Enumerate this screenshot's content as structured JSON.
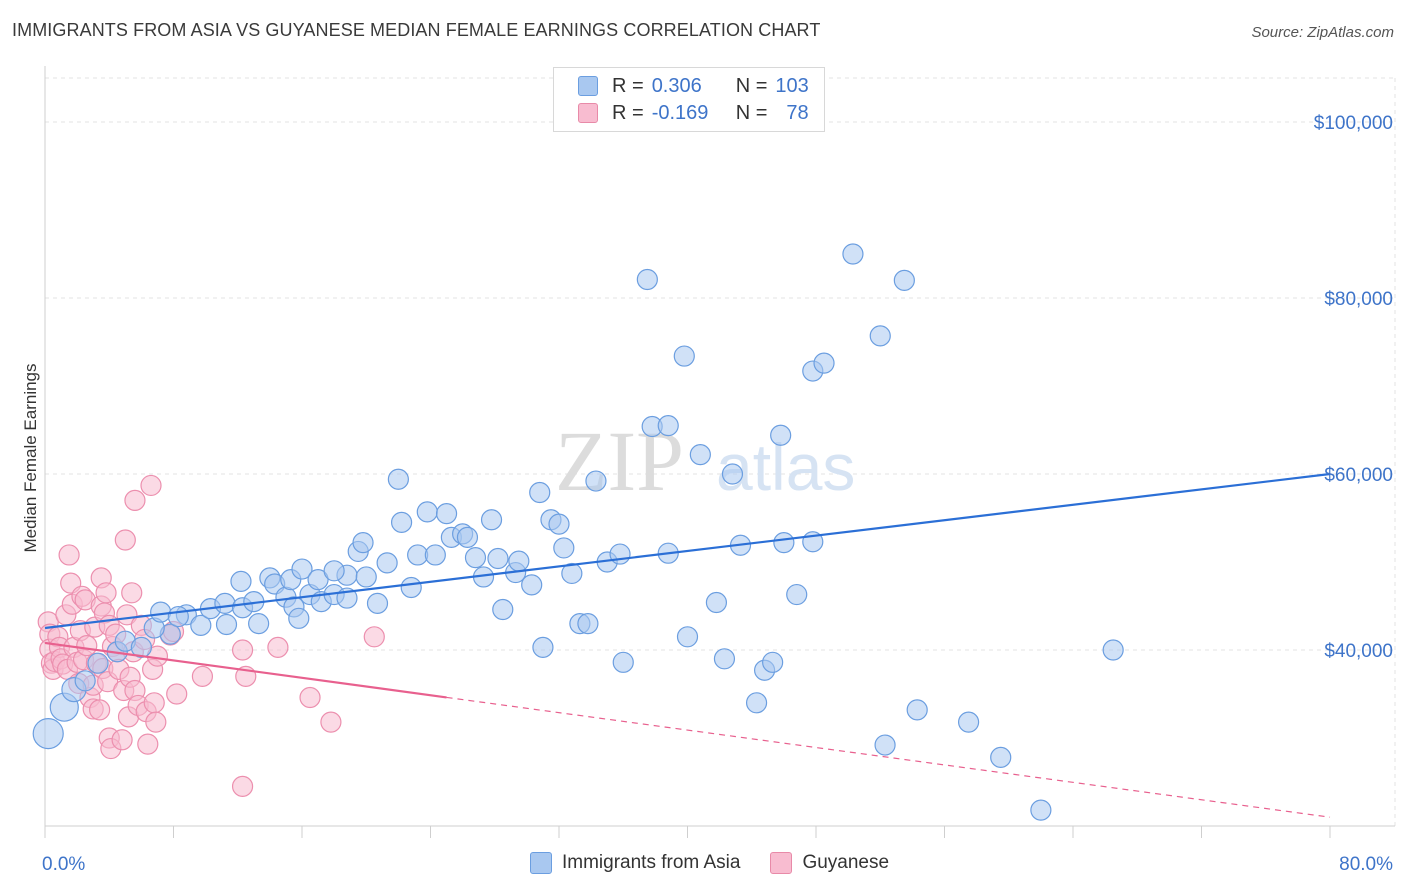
{
  "title": "IMMIGRANTS FROM ASIA VS GUYANESE MEDIAN FEMALE EARNINGS CORRELATION CHART",
  "source": "Source: ZipAtlas.com",
  "watermark": {
    "zip": "ZIP",
    "atlas": "atlas"
  },
  "legend_top": {
    "rows": [
      {
        "r_label": "R =",
        "r_value": "0.306",
        "n_label": "N =",
        "n_value": "103",
        "color": "#a9c8f0",
        "border": "#6b9ee0"
      },
      {
        "r_label": "R =",
        "r_value": "-0.169",
        "n_label": "N =",
        "n_value": "78",
        "color": "#f8bcd0",
        "border": "#e88aa8"
      }
    ]
  },
  "legend_bottom": {
    "items": [
      "Immigrants from Asia",
      "Guyanese"
    ]
  },
  "colors": {
    "blue_fill": "#a9c8f0",
    "blue_stroke": "#6b9ee0",
    "blue_line": "#2b6fd6",
    "pink_fill": "#f8bcd0",
    "pink_stroke": "#ec8fae",
    "pink_line": "#e8608e",
    "axis_text": "#3e74c9",
    "grid": "#e3e3e3"
  },
  "chart_data": {
    "type": "scatter",
    "title": "IMMIGRANTS FROM ASIA VS GUYANESE MEDIAN FEMALE EARNINGS CORRELATION CHART",
    "xlabel": "",
    "ylabel": "Median Female Earnings",
    "xlim": [
      0,
      80
    ],
    "ylim": [
      20000,
      105000
    ],
    "x_tick_labels": [
      "0.0%",
      "80.0%"
    ],
    "y_ticks": [
      40000,
      60000,
      80000,
      100000
    ],
    "y_tick_labels": [
      "$40,000",
      "$60,000",
      "$80,000",
      "$100,000"
    ],
    "grid": true,
    "series": [
      {
        "name": "Immigrants from Asia",
        "trend": {
          "x0": 0,
          "y0": 42500,
          "x1": 80,
          "y1": 60000,
          "dashed_from": null
        },
        "points": [
          [
            0.2,
            30500
          ],
          [
            1.2,
            33500
          ],
          [
            1.8,
            35500
          ],
          [
            2.5,
            36500
          ],
          [
            3.3,
            38500
          ],
          [
            4.5,
            39800
          ],
          [
            5,
            41000
          ],
          [
            6,
            40300
          ],
          [
            7.8,
            41800
          ],
          [
            6.8,
            42500
          ],
          [
            7.2,
            44300
          ],
          [
            8.8,
            44000
          ],
          [
            8.3,
            43800
          ],
          [
            9.7,
            42800
          ],
          [
            10.3,
            44700
          ],
          [
            11.2,
            45300
          ],
          [
            11.3,
            42900
          ],
          [
            12.2,
            47800
          ],
          [
            12.3,
            44800
          ],
          [
            13,
            45500
          ],
          [
            13.3,
            43000
          ],
          [
            14,
            48200
          ],
          [
            14.3,
            47500
          ],
          [
            15,
            46000
          ],
          [
            15.5,
            44900
          ],
          [
            15.3,
            48000
          ],
          [
            16,
            49200
          ],
          [
            15.8,
            43600
          ],
          [
            16.5,
            46300
          ],
          [
            17,
            48000
          ],
          [
            17.2,
            45500
          ],
          [
            18,
            46300
          ],
          [
            18.8,
            48500
          ],
          [
            18,
            49000
          ],
          [
            18.8,
            45900
          ],
          [
            19.5,
            51200
          ],
          [
            19.8,
            52200
          ],
          [
            20,
            48300
          ],
          [
            20.7,
            45300
          ],
          [
            21.3,
            49900
          ],
          [
            22,
            59400
          ],
          [
            22.2,
            54500
          ],
          [
            22.8,
            47100
          ],
          [
            23.2,
            50800
          ],
          [
            23.8,
            55700
          ],
          [
            24.3,
            50800
          ],
          [
            25,
            55500
          ],
          [
            25.3,
            52800
          ],
          [
            26,
            53200
          ],
          [
            26.3,
            52800
          ],
          [
            26.8,
            50500
          ],
          [
            27.3,
            48300
          ],
          [
            27.8,
            54800
          ],
          [
            28.2,
            50400
          ],
          [
            28.5,
            44600
          ],
          [
            29.3,
            48800
          ],
          [
            29.5,
            50100
          ],
          [
            30.3,
            47400
          ],
          [
            30.8,
            57900
          ],
          [
            31,
            40300
          ],
          [
            31.5,
            54800
          ],
          [
            32,
            54300
          ],
          [
            32.3,
            51600
          ],
          [
            32.8,
            48700
          ],
          [
            33.3,
            43000
          ],
          [
            33.8,
            43000
          ],
          [
            34.3,
            59200
          ],
          [
            35,
            50000
          ],
          [
            35.8,
            50900
          ],
          [
            36,
            38600
          ],
          [
            37.5,
            82100
          ],
          [
            37.8,
            65400
          ],
          [
            38.8,
            65500
          ],
          [
            38.8,
            51000
          ],
          [
            39.8,
            73400
          ],
          [
            40,
            41500
          ],
          [
            40.8,
            62200
          ],
          [
            41.8,
            45400
          ],
          [
            42.3,
            39000
          ],
          [
            42.8,
            60000
          ],
          [
            43.3,
            51900
          ],
          [
            44.3,
            34000
          ],
          [
            44.8,
            37700
          ],
          [
            45.3,
            38600
          ],
          [
            45.8,
            64400
          ],
          [
            46,
            52200
          ],
          [
            46.8,
            46300
          ],
          [
            47.8,
            71700
          ],
          [
            48.5,
            72600
          ],
          [
            47.8,
            52300
          ],
          [
            50.3,
            85000
          ],
          [
            52,
            75700
          ],
          [
            52.3,
            29200
          ],
          [
            53.5,
            82000
          ],
          [
            54.3,
            33200
          ],
          [
            57.5,
            31800
          ],
          [
            59.5,
            27800
          ],
          [
            62,
            21800
          ],
          [
            66.5,
            40000
          ]
        ]
      },
      {
        "name": "Guyanese",
        "trend": {
          "x0": 0,
          "y0": 40800,
          "x1": 80,
          "y1": 21000,
          "dashed_from": 25
        },
        "points": [
          [
            0.2,
            43200
          ],
          [
            0.3,
            41800
          ],
          [
            0.3,
            40100
          ],
          [
            0.4,
            38500
          ],
          [
            0.5,
            37800
          ],
          [
            0.6,
            38700
          ],
          [
            0.8,
            41500
          ],
          [
            0.9,
            40300
          ],
          [
            1,
            39000
          ],
          [
            1.1,
            38400
          ],
          [
            1.3,
            44000
          ],
          [
            1.4,
            37800
          ],
          [
            1.5,
            50800
          ],
          [
            1.6,
            47600
          ],
          [
            1.7,
            45200
          ],
          [
            1.8,
            40300
          ],
          [
            2,
            38600
          ],
          [
            2.1,
            36200
          ],
          [
            2.2,
            42200
          ],
          [
            2.3,
            46100
          ],
          [
            2.4,
            38900
          ],
          [
            2.5,
            45700
          ],
          [
            2.6,
            40500
          ],
          [
            2.8,
            34600
          ],
          [
            3,
            33300
          ],
          [
            3,
            36000
          ],
          [
            3.1,
            42600
          ],
          [
            3.2,
            38500
          ],
          [
            3.4,
            33200
          ],
          [
            3.5,
            48200
          ],
          [
            3.5,
            45000
          ],
          [
            3.6,
            37900
          ],
          [
            3.7,
            44200
          ],
          [
            3.8,
            46500
          ],
          [
            3.9,
            36400
          ],
          [
            4,
            42800
          ],
          [
            4,
            30000
          ],
          [
            4.1,
            28800
          ],
          [
            4.2,
            40400
          ],
          [
            4.4,
            41800
          ],
          [
            4.5,
            39800
          ],
          [
            4.6,
            37800
          ],
          [
            4.8,
            29800
          ],
          [
            4.9,
            35400
          ],
          [
            5,
            52500
          ],
          [
            5.1,
            44000
          ],
          [
            5.2,
            32400
          ],
          [
            5.3,
            36900
          ],
          [
            5.4,
            46500
          ],
          [
            5.5,
            39800
          ],
          [
            5.6,
            57000
          ],
          [
            5.6,
            35400
          ],
          [
            5.8,
            33700
          ],
          [
            6,
            42800
          ],
          [
            6.2,
            41200
          ],
          [
            6.3,
            33000
          ],
          [
            6.4,
            29300
          ],
          [
            6.6,
            58700
          ],
          [
            6.7,
            37800
          ],
          [
            6.8,
            34000
          ],
          [
            6.9,
            31800
          ],
          [
            7,
            39300
          ],
          [
            7.8,
            41700
          ],
          [
            8,
            42100
          ],
          [
            8.2,
            35000
          ],
          [
            9.8,
            37000
          ],
          [
            12.3,
            40000
          ],
          [
            12.5,
            37000
          ],
          [
            12.3,
            24500
          ],
          [
            14.5,
            40300
          ],
          [
            16.5,
            34600
          ],
          [
            17.8,
            31800
          ],
          [
            20.5,
            41500
          ]
        ]
      }
    ]
  }
}
